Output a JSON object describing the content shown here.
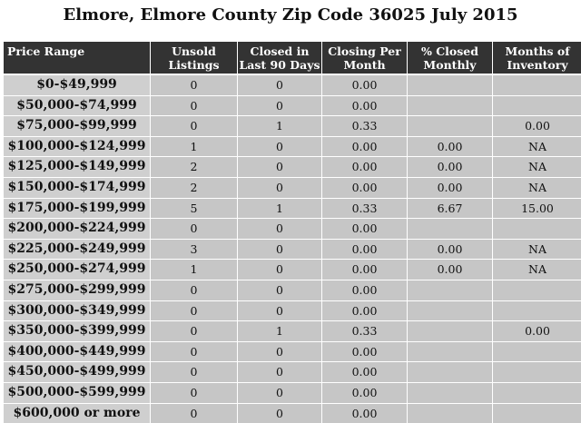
{
  "title": "Elmore, Elmore County Zip Code 36025 July 2015",
  "table": {
    "headers": [
      [
        "Price Range"
      ],
      [
        "Unsold",
        "Listings"
      ],
      [
        "Closed in",
        "Last 90 Days"
      ],
      [
        "Closing Per",
        "Month"
      ],
      [
        "% Closed",
        "Monthly"
      ],
      [
        "Months of",
        "Inventory"
      ]
    ],
    "rows": [
      {
        "range": "$0-$49,999",
        "unsold": "0",
        "closed": "0",
        "per_month": "0.00"
      },
      {
        "range": "$50,000-$74,999",
        "unsold": "0",
        "closed": "0",
        "per_month": "0.00"
      },
      {
        "range": "$75,000-$99,999",
        "unsold": "0",
        "closed": "1",
        "per_month": "0.33",
        "months": "0.00"
      },
      {
        "range": "$100,000-$124,999",
        "unsold": "1",
        "closed": "0",
        "per_month": "0.00",
        "pct_closed": "0.00",
        "months": "NA"
      },
      {
        "range": "$125,000-$149,999",
        "unsold": "2",
        "closed": "0",
        "per_month": "0.00",
        "pct_closed": "0.00",
        "months": "NA"
      },
      {
        "range": "$150,000-$174,999",
        "unsold": "2",
        "closed": "0",
        "per_month": "0.00",
        "pct_closed": "0.00",
        "months": "NA"
      },
      {
        "range": "$175,000-$199,999",
        "unsold": "5",
        "closed": "1",
        "per_month": "0.33",
        "pct_closed": "6.67",
        "months": "15.00"
      },
      {
        "range": "$200,000-$224,999",
        "unsold": "0",
        "closed": "0",
        "per_month": "0.00"
      },
      {
        "range": "$225,000-$249,999",
        "unsold": "3",
        "closed": "0",
        "per_month": "0.00",
        "pct_closed": "0.00",
        "months": "NA"
      },
      {
        "range": "$250,000-$274,999",
        "unsold": "1",
        "closed": "0",
        "per_month": "0.00",
        "pct_closed": "0.00",
        "months": "NA"
      },
      {
        "range": "$275,000-$299,999",
        "unsold": "0",
        "closed": "0",
        "per_month": "0.00"
      },
      {
        "range": "$300,000-$349,999",
        "unsold": "0",
        "closed": "0",
        "per_month": "0.00"
      },
      {
        "range": "$350,000-$399,999",
        "unsold": "0",
        "closed": "1",
        "per_month": "0.33",
        "months": "0.00"
      },
      {
        "range": "$400,000-$449,999",
        "unsold": "0",
        "closed": "0",
        "per_month": "0.00"
      },
      {
        "range": "$450,000-$499,999",
        "unsold": "0",
        "closed": "0",
        "per_month": "0.00"
      },
      {
        "range": "$500,000-$599,999",
        "unsold": "0",
        "closed": "0",
        "per_month": "0.00"
      },
      {
        "range": "$600,000 or more",
        "unsold": "0",
        "closed": "0",
        "per_month": "0.00"
      }
    ]
  }
}
